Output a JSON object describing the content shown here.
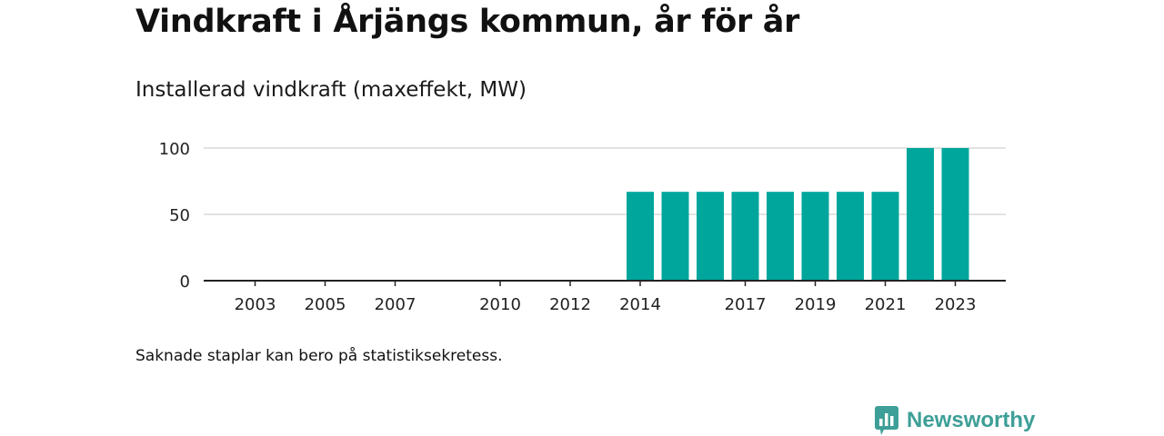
{
  "title": "Vindkraft i Årjängs kommun, år för år",
  "subtitle": "Installerad vindkraft (maxeffekt, MW)",
  "note": "Saknade staplar kan bero på statistiksekretess.",
  "brand": {
    "name": "Newsworthy",
    "logo_icon": "bar-chart-speech-bubble-icon"
  },
  "colors": {
    "bar": "#00a69c",
    "axis": "#222222",
    "grid": "#d9d9d9",
    "brand": "#3d9f97"
  },
  "chart_data": {
    "type": "bar",
    "title": "Vindkraft i Årjängs kommun, år för år",
    "subtitle": "Installerad vindkraft (maxeffekt, MW)",
    "xlabel": "",
    "ylabel": "",
    "categories": [
      "2002",
      "2003",
      "2004",
      "2005",
      "2006",
      "2007",
      "2008",
      "2009",
      "2010",
      "2011",
      "2012",
      "2013",
      "2014",
      "2015",
      "2016",
      "2017",
      "2018",
      "2019",
      "2020",
      "2021",
      "2022",
      "2023"
    ],
    "values": [
      null,
      null,
      null,
      null,
      null,
      null,
      null,
      null,
      null,
      null,
      null,
      null,
      67,
      67,
      67,
      67,
      67,
      67,
      67,
      67,
      100,
      100
    ],
    "x_tick_labels": [
      "2003",
      "2005",
      "2007",
      "2010",
      "2012",
      "2014",
      "2017",
      "2019",
      "2021",
      "2023"
    ],
    "y_ticks": [
      0,
      50,
      100
    ],
    "ylim": [
      0,
      100
    ],
    "grid": true,
    "legend": "none"
  }
}
